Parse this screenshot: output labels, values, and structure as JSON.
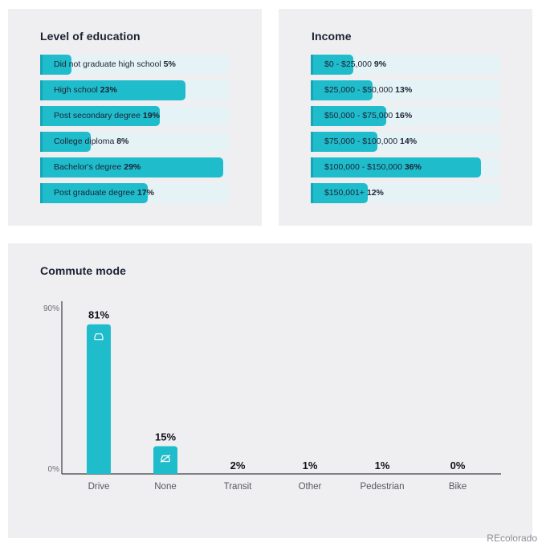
{
  "chart_data": [
    {
      "type": "bar",
      "orientation": "horizontal",
      "title": "Level of education",
      "categories": [
        "Did not graduate high school",
        "High school",
        "Post secondary degree",
        "College diploma",
        "Bachelor's degree",
        "Post graduate degree"
      ],
      "values": [
        5,
        23,
        19,
        8,
        29,
        17
      ],
      "value_labels": [
        "5%",
        "23%",
        "19%",
        "8%",
        "29%",
        "17%"
      ],
      "xlim": [
        0,
        30
      ]
    },
    {
      "type": "bar",
      "orientation": "horizontal",
      "title": "Income",
      "categories": [
        "$0 - $25,000",
        "$25,000 - $50,000",
        "$50,000 - $75,000",
        "$75,000 - $100,000",
        "$100,000 - $150,000",
        "$150,001+"
      ],
      "values": [
        9,
        13,
        16,
        14,
        36,
        12
      ],
      "value_labels": [
        "9%",
        "13%",
        "16%",
        "14%",
        "36%",
        "12%"
      ],
      "xlim": [
        0,
        40
      ]
    },
    {
      "type": "bar",
      "orientation": "vertical",
      "title": "Commute mode",
      "categories": [
        "Drive",
        "None",
        "Transit",
        "Other",
        "Pedestrian",
        "Bike"
      ],
      "values": [
        81,
        15,
        2,
        1,
        1,
        0
      ],
      "value_labels": [
        "81%",
        "15%",
        "2%",
        "1%",
        "1%",
        "0%"
      ],
      "icons": [
        "car-icon",
        "no-car-icon",
        "",
        "",
        "",
        ""
      ],
      "ylim": [
        0,
        90
      ],
      "ytick_labels": [
        "0%",
        "90%"
      ]
    }
  ],
  "colors": {
    "bar": "#1fbccc",
    "track": "#e6f3f6",
    "panel": "#efeff1",
    "text": "#1c2233",
    "axis": "#3a3d44"
  },
  "watermark": "REcolorado"
}
